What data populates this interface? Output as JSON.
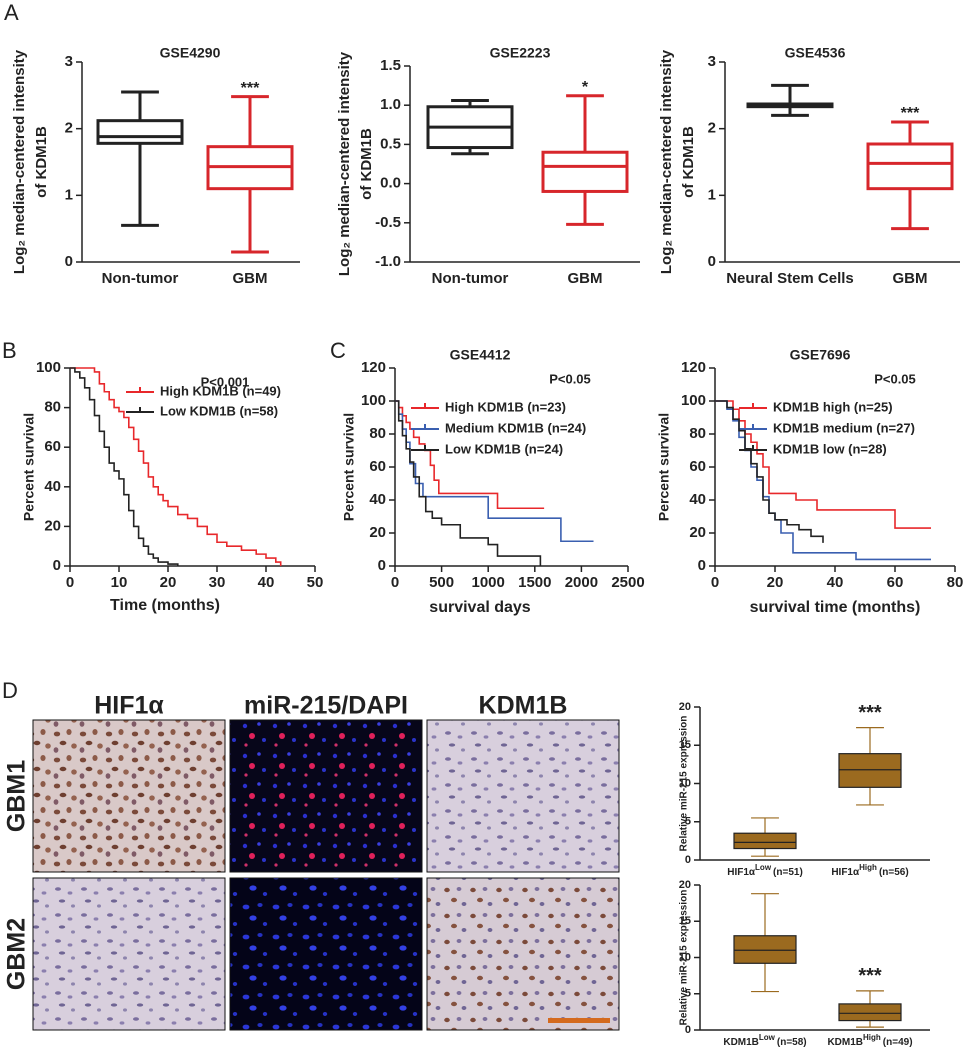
{
  "panel_labels": [
    "A",
    "B",
    "C",
    "D"
  ],
  "images": {
    "columns": [
      "HIF1α",
      "miR-215/DAPI",
      "KDM1B"
    ],
    "rows": [
      "GBM1",
      "GBM2"
    ]
  },
  "chart_data": [
    {
      "type": "box",
      "title": "GSE4290",
      "ylabel": [
        "Log₂ median-centered intensity",
        "of  KDM1B"
      ],
      "categories": [
        "Non-tumor",
        "GBM"
      ],
      "boxes": [
        {
          "min": 0.55,
          "q1": 1.78,
          "median": 1.88,
          "q3": 2.12,
          "max": 2.55,
          "color": "#222222"
        },
        {
          "min": 0.15,
          "q1": 1.1,
          "median": 1.43,
          "q3": 1.73,
          "max": 2.48,
          "color": "#d7262b",
          "annotation": "***"
        }
      ],
      "ylim": [
        0,
        3
      ],
      "yticks": [
        0,
        1,
        2,
        3
      ]
    },
    {
      "type": "box",
      "title": "GSE2223",
      "ylabel": [
        "Log₂ median-centered intensity",
        "of KDM1B"
      ],
      "categories": [
        "Non-tumor",
        "GBM"
      ],
      "boxes": [
        {
          "min": 0.38,
          "q1": 0.46,
          "median": 0.72,
          "q3": 0.98,
          "max": 1.06,
          "color": "#222222"
        },
        {
          "min": -0.52,
          "q1": -0.1,
          "median": 0.22,
          "q3": 0.4,
          "max": 1.12,
          "color": "#d7262b",
          "annotation": "*"
        }
      ],
      "ylim": [
        -1,
        1.5
      ],
      "yticks": [
        {
          "value": -1,
          "label": "-1.0"
        },
        -0.5,
        {
          "value": 0,
          "label": "0.0"
        },
        0.5,
        {
          "value": 1,
          "label": "1.0"
        },
        1.5
      ]
    },
    {
      "type": "box",
      "title": "GSE4536",
      "ylabel": [
        "Log₂ median-centered intensity",
        "of KDM1B"
      ],
      "categories": [
        "Neural Stem Cells",
        "GBM"
      ],
      "boxes": [
        {
          "min": 2.2,
          "q1": 2.33,
          "median": 2.35,
          "q3": 2.37,
          "max": 2.65,
          "color": "#222222"
        },
        {
          "min": 0.5,
          "q1": 1.1,
          "median": 1.48,
          "q3": 1.77,
          "max": 2.1,
          "color": "#d7262b",
          "annotation": "***"
        }
      ],
      "ylim": [
        0,
        3
      ],
      "yticks": [
        0,
        1,
        2,
        3
      ]
    },
    {
      "type": "line",
      "step": true,
      "annotation": "P<0.001",
      "xlabel": "Time (months)",
      "ylabel": "Percent survival",
      "series": [
        {
          "name": "High KDM1B (n=49)",
          "color": "#e8282b",
          "x": [
            0,
            3,
            5,
            6,
            7,
            8,
            9,
            10,
            11,
            12,
            13,
            14,
            15,
            16,
            17,
            18,
            19,
            20,
            22,
            24,
            26,
            28,
            30,
            32,
            35,
            38,
            40,
            42,
            43
          ],
          "values": [
            100,
            100,
            98,
            92,
            88,
            84,
            80,
            78,
            75,
            70,
            64,
            58,
            52,
            45,
            40,
            36,
            33,
            30,
            26,
            24,
            20,
            16,
            12,
            10,
            8,
            6,
            4,
            2,
            0
          ]
        },
        {
          "name": "Low KDM1B (n=58)",
          "color": "#222222",
          "x": [
            0,
            1,
            2,
            3,
            4,
            5,
            6,
            7,
            8,
            9,
            10,
            11,
            12,
            13,
            14,
            15,
            16,
            17,
            18,
            20,
            22
          ],
          "values": [
            100,
            98,
            95,
            90,
            84,
            76,
            68,
            60,
            52,
            48,
            44,
            36,
            28,
            20,
            14,
            10,
            6,
            4,
            2,
            1,
            0
          ]
        }
      ],
      "xlim": [
        0,
        50
      ],
      "xticks": [
        0,
        10,
        20,
        30,
        40,
        50
      ],
      "ylim": [
        0,
        100
      ],
      "yticks": [
        0,
        20,
        40,
        60,
        80,
        100
      ]
    },
    {
      "type": "line",
      "step": true,
      "title": "GSE4412",
      "annotation": "P<0.05",
      "xlabel": "survival days",
      "ylabel": "Percent survival",
      "series": [
        {
          "name": "High KDM1B (n=23)",
          "color": "#e8282b",
          "x": [
            0,
            40,
            80,
            120,
            160,
            200,
            260,
            320,
            380,
            420,
            470,
            1100,
            1600
          ],
          "values": [
            100,
            96,
            91,
            87,
            83,
            78,
            74,
            70,
            61,
            52,
            44,
            35,
            35
          ]
        },
        {
          "name": "Medium KDM1B (n=24)",
          "color": "#3a5fb0",
          "x": [
            0,
            40,
            80,
            120,
            160,
            220,
            300,
            1000,
            1780,
            2130
          ],
          "values": [
            100,
            92,
            83,
            75,
            62,
            50,
            42,
            29,
            15,
            15
          ]
        },
        {
          "name": "Low KDM1B (n=24)",
          "color": "#222222",
          "x": [
            0,
            40,
            80,
            120,
            160,
            200,
            260,
            330,
            400,
            500,
            700,
            1000,
            1100,
            1560
          ],
          "values": [
            100,
            88,
            79,
            71,
            63,
            54,
            42,
            33,
            29,
            25,
            17,
            13,
            6,
            0
          ]
        }
      ],
      "xlim": [
        0,
        2500
      ],
      "xticks": [
        0,
        500,
        1000,
        1500,
        2000,
        2500
      ],
      "ylim": [
        0,
        120
      ],
      "yticks": [
        0,
        20,
        40,
        60,
        80,
        100,
        120
      ]
    },
    {
      "type": "line",
      "step": true,
      "title": "GSE7696",
      "annotation": "P<0.05",
      "xlabel": "survival time (months)",
      "ylabel": "Percent survival",
      "series": [
        {
          "name": "KDM1B high (n=25)",
          "color": "#e8282b",
          "x": [
            0,
            6,
            8,
            10,
            12,
            14,
            16,
            18,
            27,
            34,
            60,
            72
          ],
          "values": [
            100,
            95,
            88,
            80,
            75,
            68,
            60,
            44,
            40,
            34,
            23,
            23
          ]
        },
        {
          "name": "KDM1B medium (n=27)",
          "color": "#3a5fb0",
          "x": [
            0,
            4,
            6,
            8,
            10,
            12,
            14,
            16,
            18,
            20,
            22,
            26,
            47,
            72
          ],
          "values": [
            100,
            95,
            88,
            78,
            70,
            60,
            52,
            42,
            32,
            28,
            20,
            8,
            4,
            4
          ]
        },
        {
          "name": "KDM1B low (n=28)",
          "color": "#222222",
          "x": [
            0,
            4,
            6,
            8,
            10,
            12,
            14,
            16,
            18,
            20,
            24,
            28,
            32,
            36
          ],
          "values": [
            100,
            96,
            89,
            82,
            71,
            62,
            54,
            40,
            32,
            28,
            25,
            22,
            18,
            14
          ]
        }
      ],
      "xlim": [
        0,
        80
      ],
      "xticks": [
        0,
        20,
        40,
        60,
        80
      ],
      "ylim": [
        0,
        120
      ],
      "yticks": [
        0,
        20,
        40,
        60,
        80,
        100,
        120
      ]
    },
    {
      "type": "box",
      "ylabel": [
        "Relative miR-215 expression"
      ],
      "categories": [
        "HIF1α",
        "HIF1α"
      ],
      "category_superscripts": [
        "Low",
        "High"
      ],
      "category_notes": [
        "(n=51)",
        "(n=56)"
      ],
      "boxes": [
        {
          "min": 0.5,
          "q1": 1.5,
          "median": 2.3,
          "q3": 3.5,
          "max": 5.5,
          "color": "#9b6a1f"
        },
        {
          "min": 7.2,
          "q1": 9.5,
          "median": 11.8,
          "q3": 13.9,
          "max": 17.3,
          "color": "#9b6a1f",
          "annotation": "***"
        }
      ],
      "ylim": [
        0,
        20
      ],
      "yticks": [
        0,
        5,
        10,
        15,
        20
      ]
    },
    {
      "type": "box",
      "ylabel": [
        "Relative miR-215 expression"
      ],
      "categories": [
        "KDM1B",
        "KDM1B"
      ],
      "category_superscripts": [
        "Low",
        "High"
      ],
      "category_notes": [
        "(n=58)",
        "(n=49)"
      ],
      "boxes": [
        {
          "min": 5.3,
          "q1": 9.2,
          "median": 11,
          "q3": 13,
          "max": 18.8,
          "color": "#9b6a1f"
        },
        {
          "min": 0.4,
          "q1": 1.3,
          "median": 2.3,
          "q3": 3.6,
          "max": 5.4,
          "color": "#9b6a1f",
          "annotation": "***"
        }
      ],
      "ylim": [
        0,
        20
      ],
      "yticks": [
        0,
        5,
        10,
        15,
        20
      ]
    }
  ]
}
